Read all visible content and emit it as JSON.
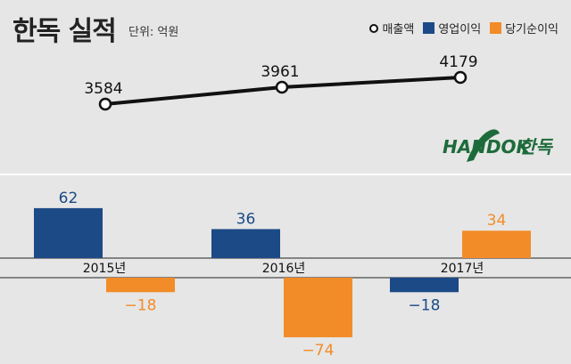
{
  "header": {
    "title": "한독 실적",
    "unit": "단위: 억원"
  },
  "legend": [
    {
      "label": "매출액",
      "shape": "circle",
      "color": "#111111"
    },
    {
      "label": "영업이익",
      "shape": "box",
      "color": "#1b4a86"
    },
    {
      "label": "당기순이익",
      "shape": "box",
      "color": "#f28c28"
    }
  ],
  "logo": {
    "text_en": "HANDOK",
    "text_ko": "한독",
    "color": "#1d6b3a"
  },
  "chart_data": [
    {
      "type": "line",
      "name": "매출액",
      "categories": [
        "2015년",
        "2016년",
        "2017년"
      ],
      "values": [
        3584,
        3961,
        4179
      ],
      "labels": [
        "3584",
        "3961",
        "4179"
      ],
      "color": "#111111"
    },
    {
      "type": "bar",
      "categories": [
        "2015년",
        "2016년",
        "2017년"
      ],
      "category_labels": [
        "2015년",
        "2016년",
        "2017년"
      ],
      "series": [
        {
          "name": "영업이익",
          "values": [
            62,
            36,
            -18
          ],
          "labels": [
            "62",
            "36",
            "−18"
          ],
          "color": "#1b4a86"
        },
        {
          "name": "당기순이익",
          "values": [
            -18,
            -74,
            34
          ],
          "labels": [
            "−18",
            "−74",
            "34"
          ],
          "color": "#f28c28"
        }
      ],
      "grid": false
    }
  ]
}
